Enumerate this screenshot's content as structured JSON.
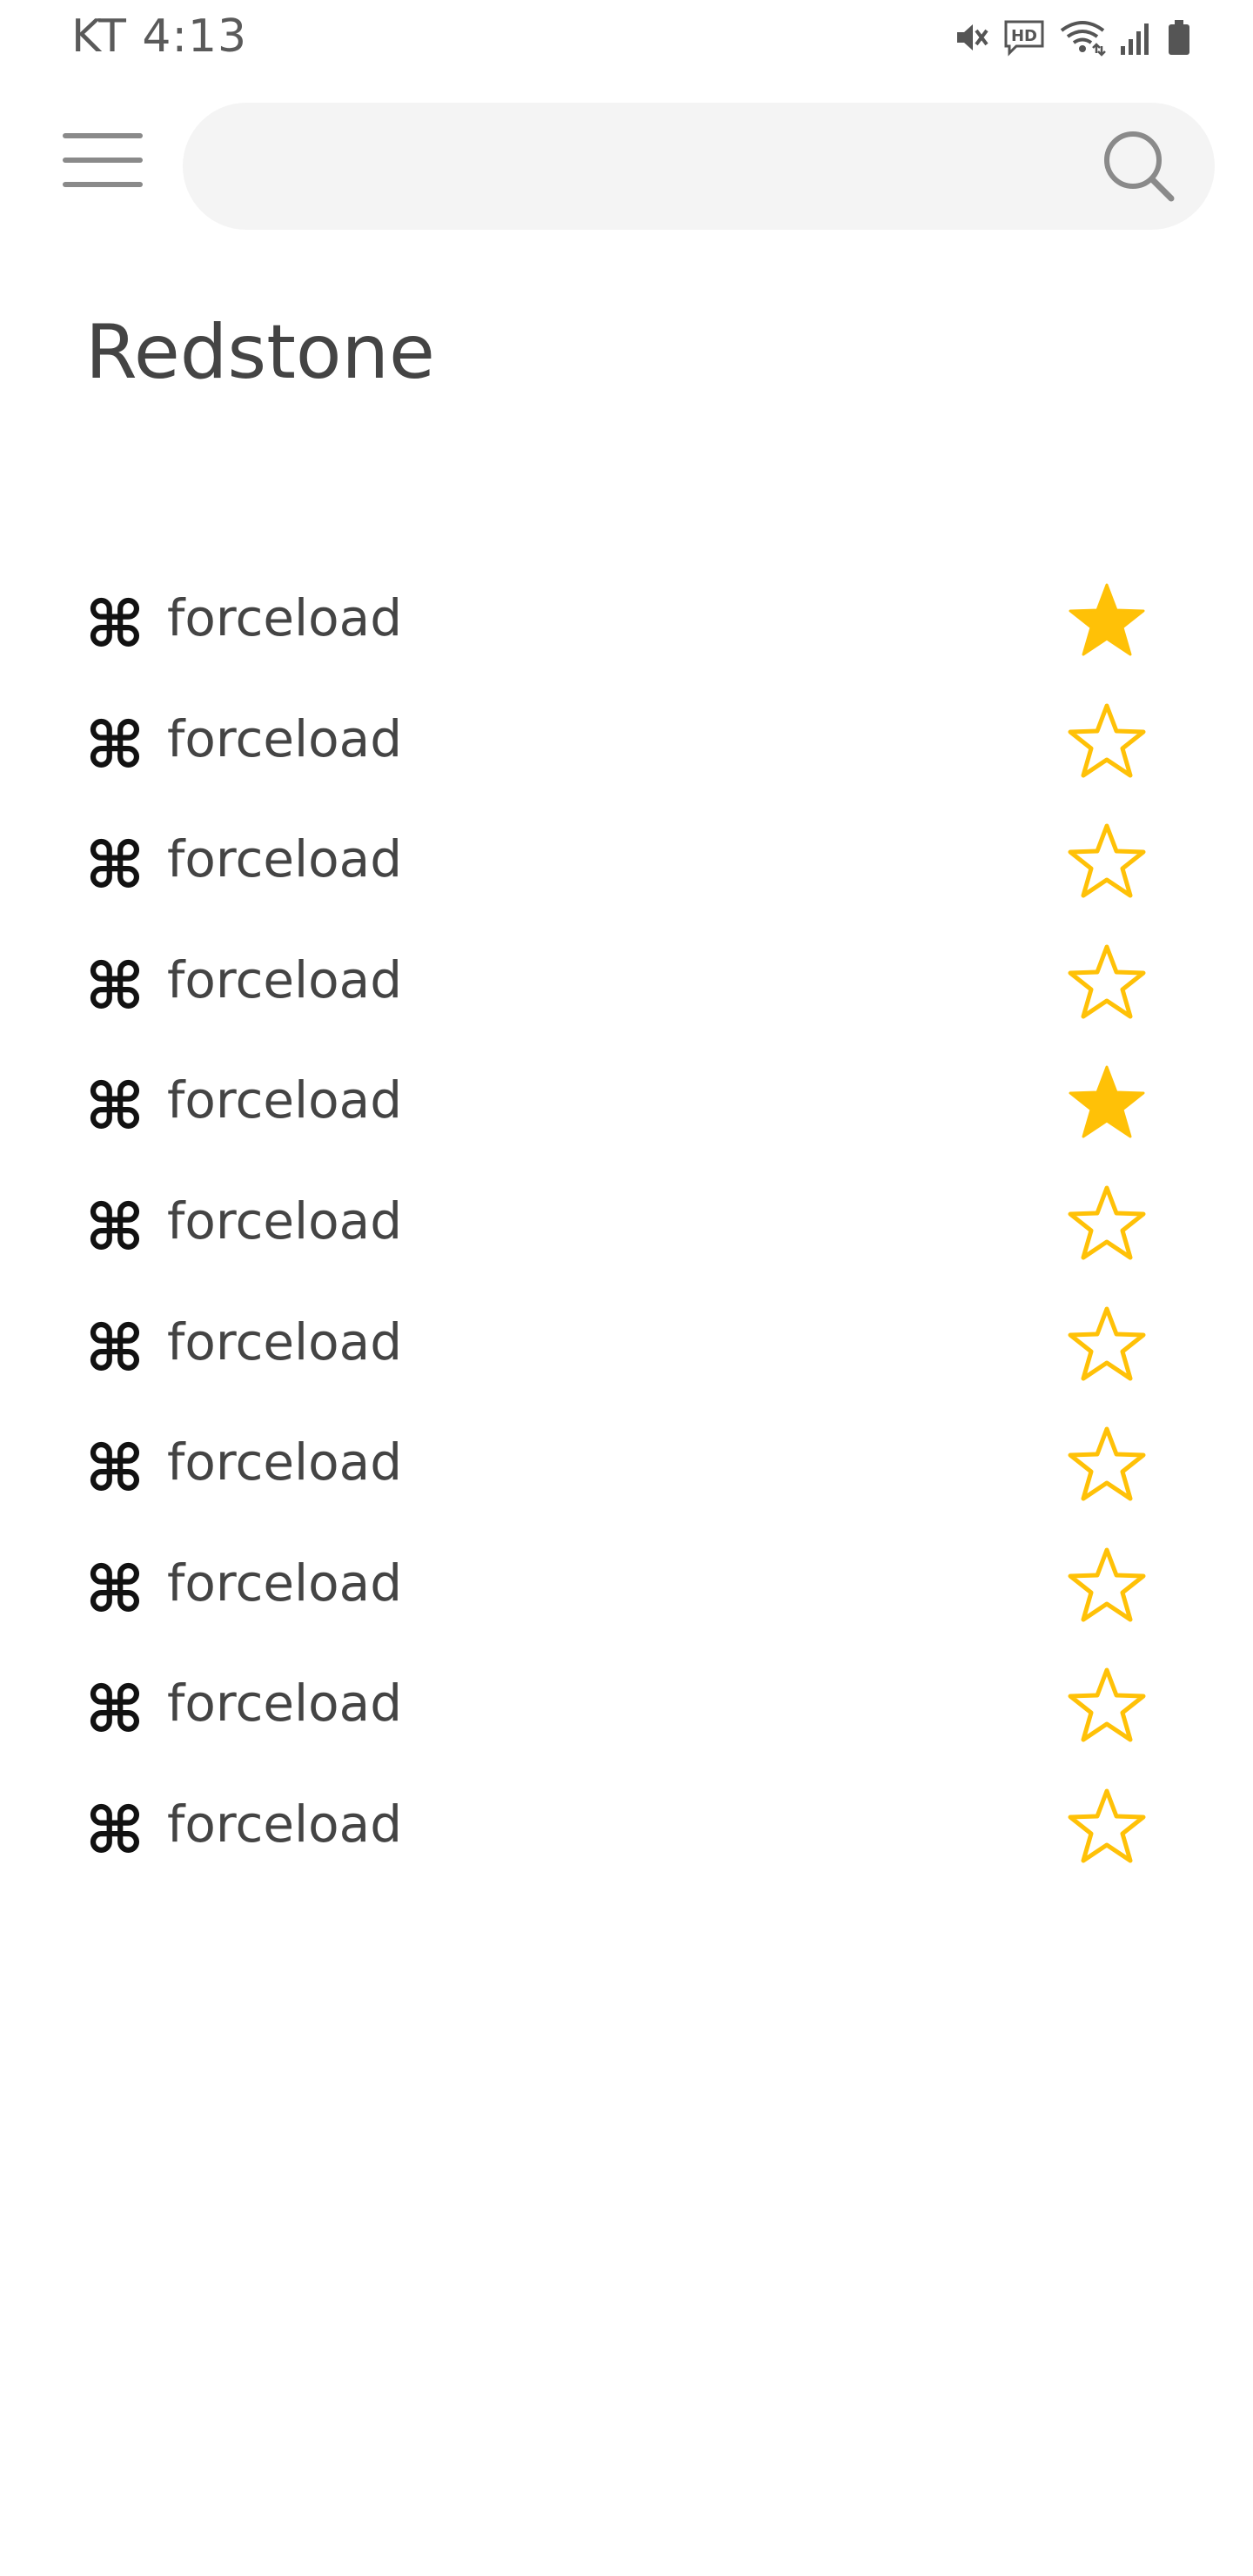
{
  "status_bar": {
    "carrier_time": "KT 4:13",
    "icons": [
      "mute-icon",
      "hd-voice-icon",
      "wifi-icon",
      "signal-icon",
      "battery-icon"
    ],
    "hd_label": "HD"
  },
  "header": {
    "menu_icon": "hamburger-menu-icon",
    "search": {
      "value": "",
      "placeholder": "",
      "icon": "search-icon"
    }
  },
  "page": {
    "title": "Redstone"
  },
  "colors": {
    "star": "#FFC107",
    "search_bg": "#f4f4f4",
    "title": "#444444"
  },
  "commands": [
    {
      "icon": "command-icon",
      "glyph": "⌘",
      "label": "forceload",
      "favorite": true
    },
    {
      "icon": "command-icon",
      "glyph": "⌘",
      "label": "forceload",
      "favorite": false
    },
    {
      "icon": "command-icon",
      "glyph": "⌘",
      "label": "forceload",
      "favorite": false
    },
    {
      "icon": "command-icon",
      "glyph": "⌘",
      "label": "forceload",
      "favorite": false
    },
    {
      "icon": "command-icon",
      "glyph": "⌘",
      "label": "forceload",
      "favorite": true
    },
    {
      "icon": "command-icon",
      "glyph": "⌘",
      "label": "forceload",
      "favorite": false
    },
    {
      "icon": "command-icon",
      "glyph": "⌘",
      "label": "forceload",
      "favorite": false
    },
    {
      "icon": "command-icon",
      "glyph": "⌘",
      "label": "forceload",
      "favorite": false
    },
    {
      "icon": "command-icon",
      "glyph": "⌘",
      "label": "forceload",
      "favorite": false
    },
    {
      "icon": "command-icon",
      "glyph": "⌘",
      "label": "forceload",
      "favorite": false
    },
    {
      "icon": "command-icon",
      "glyph": "⌘",
      "label": "forceload",
      "favorite": false
    }
  ]
}
